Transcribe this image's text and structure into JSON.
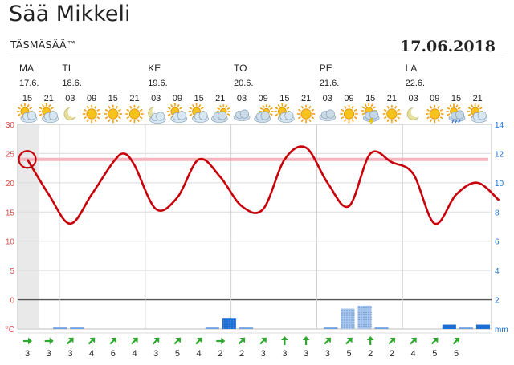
{
  "page": {
    "title": "Sää Mikkeli",
    "subtitle": "TÄSMÄSÄÄ™",
    "date": "17.06.2018"
  },
  "days": [
    {
      "name": "MA",
      "date": "17.6."
    },
    {
      "name": "TI",
      "date": "18.6."
    },
    {
      "name": "KE",
      "date": "19.6."
    },
    {
      "name": "TO",
      "date": "20.6."
    },
    {
      "name": "PE",
      "date": "21.6."
    },
    {
      "name": "LA",
      "date": "22.6."
    }
  ],
  "colors": {
    "temperature_line": "#c8000a",
    "highlight_line": "#f2aab3",
    "precip_bar": "#1a6fd6",
    "precip_bar_light": "#a8c6ec",
    "wind_arrow": "#2ea82e",
    "left_axis": "#e04b4b",
    "right_axis": "#1a6fd6"
  },
  "chart_data": {
    "type": "line",
    "title": "",
    "time_labels": [
      "15",
      "21",
      "03",
      "09",
      "15",
      "21",
      "03",
      "09",
      "15",
      "21",
      "03",
      "09",
      "15",
      "21",
      "03",
      "09",
      "15",
      "21",
      "03",
      "09",
      "15",
      "21"
    ],
    "weather_icons": [
      "sun-cloud",
      "sun-cloud",
      "moon",
      "sun",
      "sun",
      "sun",
      "moon-cloud",
      "sun-cloud",
      "sun-cloud",
      "cloud-sun",
      "cloud",
      "cloud-sun",
      "sun-cloud",
      "sun",
      "cloud",
      "sun",
      "thunder-shower",
      "sun",
      "moon",
      "sun",
      "shower",
      "sun-cloud"
    ],
    "temperature": {
      "unit": "°C",
      "ylim": [
        -5,
        30
      ],
      "ticks": [
        "30",
        "25",
        "20",
        "15",
        "10",
        "5",
        "0",
        "°C"
      ],
      "points": [
        {
          "x": 0,
          "y": 24
        },
        {
          "x": 1,
          "y": 18
        },
        {
          "x": 2,
          "y": 13
        },
        {
          "x": 3,
          "y": 18
        },
        {
          "x": 4,
          "y": 23.5
        },
        {
          "x": 4.5,
          "y": 25
        },
        {
          "x": 5,
          "y": 23
        },
        {
          "x": 6,
          "y": 15.5
        },
        {
          "x": 7,
          "y": 17.5
        },
        {
          "x": 8,
          "y": 24
        },
        {
          "x": 9,
          "y": 21
        },
        {
          "x": 10,
          "y": 16
        },
        {
          "x": 11,
          "y": 15.5
        },
        {
          "x": 12,
          "y": 24
        },
        {
          "x": 13,
          "y": 26
        },
        {
          "x": 14,
          "y": 20
        },
        {
          "x": 15,
          "y": 16
        },
        {
          "x": 16,
          "y": 25
        },
        {
          "x": 17,
          "y": 23.5
        },
        {
          "x": 18,
          "y": 21.5
        },
        {
          "x": 19,
          "y": 13
        },
        {
          "x": 20,
          "y": 18
        },
        {
          "x": 21,
          "y": 20
        },
        {
          "x": 22,
          "y": 17
        }
      ],
      "marker": {
        "x": 0,
        "y": 24
      },
      "highlight_value": 24
    },
    "right_axis": {
      "ylim": [
        0,
        14
      ],
      "ticks": [
        "14",
        "12",
        "10",
        "8",
        "6",
        "4",
        "2",
        "mm"
      ]
    },
    "precipitation_mm": [
      0,
      0,
      0.1,
      0.1,
      0,
      0,
      0,
      0,
      0,
      0,
      0,
      0.1,
      0.7,
      0.1,
      0,
      0,
      0,
      0,
      0.1,
      1.4,
      1.6,
      0.1,
      0,
      0,
      0,
      0.3,
      0.1,
      0.3
    ],
    "wind": {
      "speeds": [
        "3",
        "3",
        "3",
        "4",
        "6",
        "4",
        "3",
        "5",
        "4",
        "2",
        "2",
        "3",
        "3",
        "3",
        "3",
        "5",
        "2",
        "2",
        "4",
        "5",
        "5"
      ],
      "directions": [
        "E",
        "E",
        "NE",
        "NE",
        "NE",
        "NE",
        "NE",
        "NE",
        "NE",
        "E",
        "NE",
        "NE",
        "N",
        "N",
        "NE",
        "NE",
        "N",
        "NE",
        "NE",
        "NE",
        "NE"
      ]
    },
    "grid": true,
    "day_separators": true
  }
}
